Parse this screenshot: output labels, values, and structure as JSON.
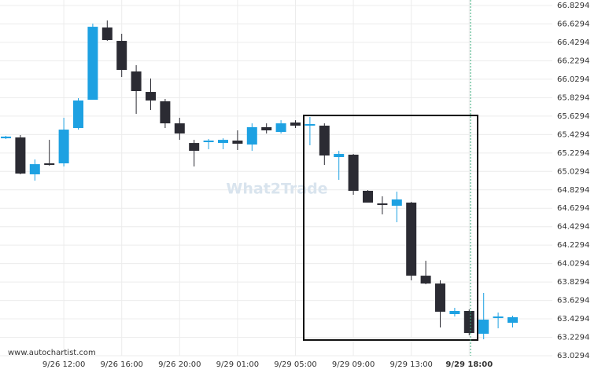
{
  "chart_data": {
    "type": "candlestick",
    "watermark": "What2Trade",
    "source": "www.autochartist.com",
    "categories": [
      null,
      null,
      null,
      null,
      "9/26 12:00",
      null,
      null,
      null,
      "9/26 16:00",
      null,
      null,
      null,
      "9/26 20:00",
      null,
      null,
      null,
      "9/29 01:00",
      null,
      null,
      null,
      "9/29 05:00",
      null,
      null,
      null,
      "9/29 09:00",
      null,
      null,
      null,
      "9/29 13:00",
      null,
      null,
      null,
      "9/29 18:00",
      null,
      null,
      null
    ],
    "open": [
      65.389,
      65.398,
      64.998,
      65.117,
      65.117,
      65.5,
      65.807,
      66.591,
      66.446,
      66.114,
      65.892,
      65.79,
      65.551,
      65.338,
      65.347,
      65.338,
      65.364,
      65.321,
      65.509,
      65.458,
      65.56,
      65.526,
      65.526,
      65.185,
      65.211,
      64.819,
      64.682,
      64.657,
      64.691,
      63.898,
      63.813,
      63.481,
      63.515,
      63.268,
      63.447,
      63.387
    ],
    "high": [
      65.415,
      65.424,
      65.159,
      65.372,
      65.611,
      65.824,
      66.633,
      66.667,
      66.523,
      66.182,
      66.037,
      65.816,
      65.611,
      65.372,
      65.381,
      65.389,
      65.475,
      65.551,
      65.551,
      65.585,
      65.585,
      65.62,
      65.551,
      65.253,
      65.219,
      64.827,
      64.759,
      64.81,
      64.699,
      64.06,
      63.847,
      63.549,
      63.532,
      63.711,
      63.498,
      63.464
    ],
    "low": [
      65.381,
      64.998,
      64.929,
      65.091,
      65.083,
      65.483,
      65.807,
      66.446,
      66.054,
      65.654,
      65.696,
      65.5,
      65.372,
      65.083,
      65.27,
      65.27,
      65.262,
      65.253,
      65.441,
      65.441,
      65.5,
      65.313,
      65.1,
      64.938,
      64.776,
      64.699,
      64.563,
      64.478,
      63.847,
      63.805,
      63.336,
      63.455,
      63.251,
      63.208,
      63.327,
      63.336
    ],
    "close": [
      65.407,
      65.006,
      65.108,
      65.1,
      65.483,
      65.799,
      66.599,
      66.455,
      66.131,
      65.901,
      65.799,
      65.551,
      65.441,
      65.253,
      65.364,
      65.372,
      65.33,
      65.509,
      65.475,
      65.551,
      65.526,
      65.543,
      65.202,
      65.219,
      64.819,
      64.691,
      64.674,
      64.725,
      63.898,
      63.813,
      63.507,
      63.515,
      63.276,
      63.421,
      63.455,
      63.447
    ],
    "up_color": "#1da1e2",
    "down_color": "#2b2b33",
    "ylim": [
      63.0294,
      66.8894
    ],
    "yticks": [
      63.0294,
      63.2294,
      63.4294,
      63.6294,
      63.8294,
      64.0294,
      64.2294,
      64.4294,
      64.6294,
      64.8294,
      65.0294,
      65.2294,
      65.4294,
      65.6294,
      65.8294,
      66.0294,
      66.2294,
      66.4294,
      66.6294,
      66.8294
    ],
    "grid": true
  }
}
